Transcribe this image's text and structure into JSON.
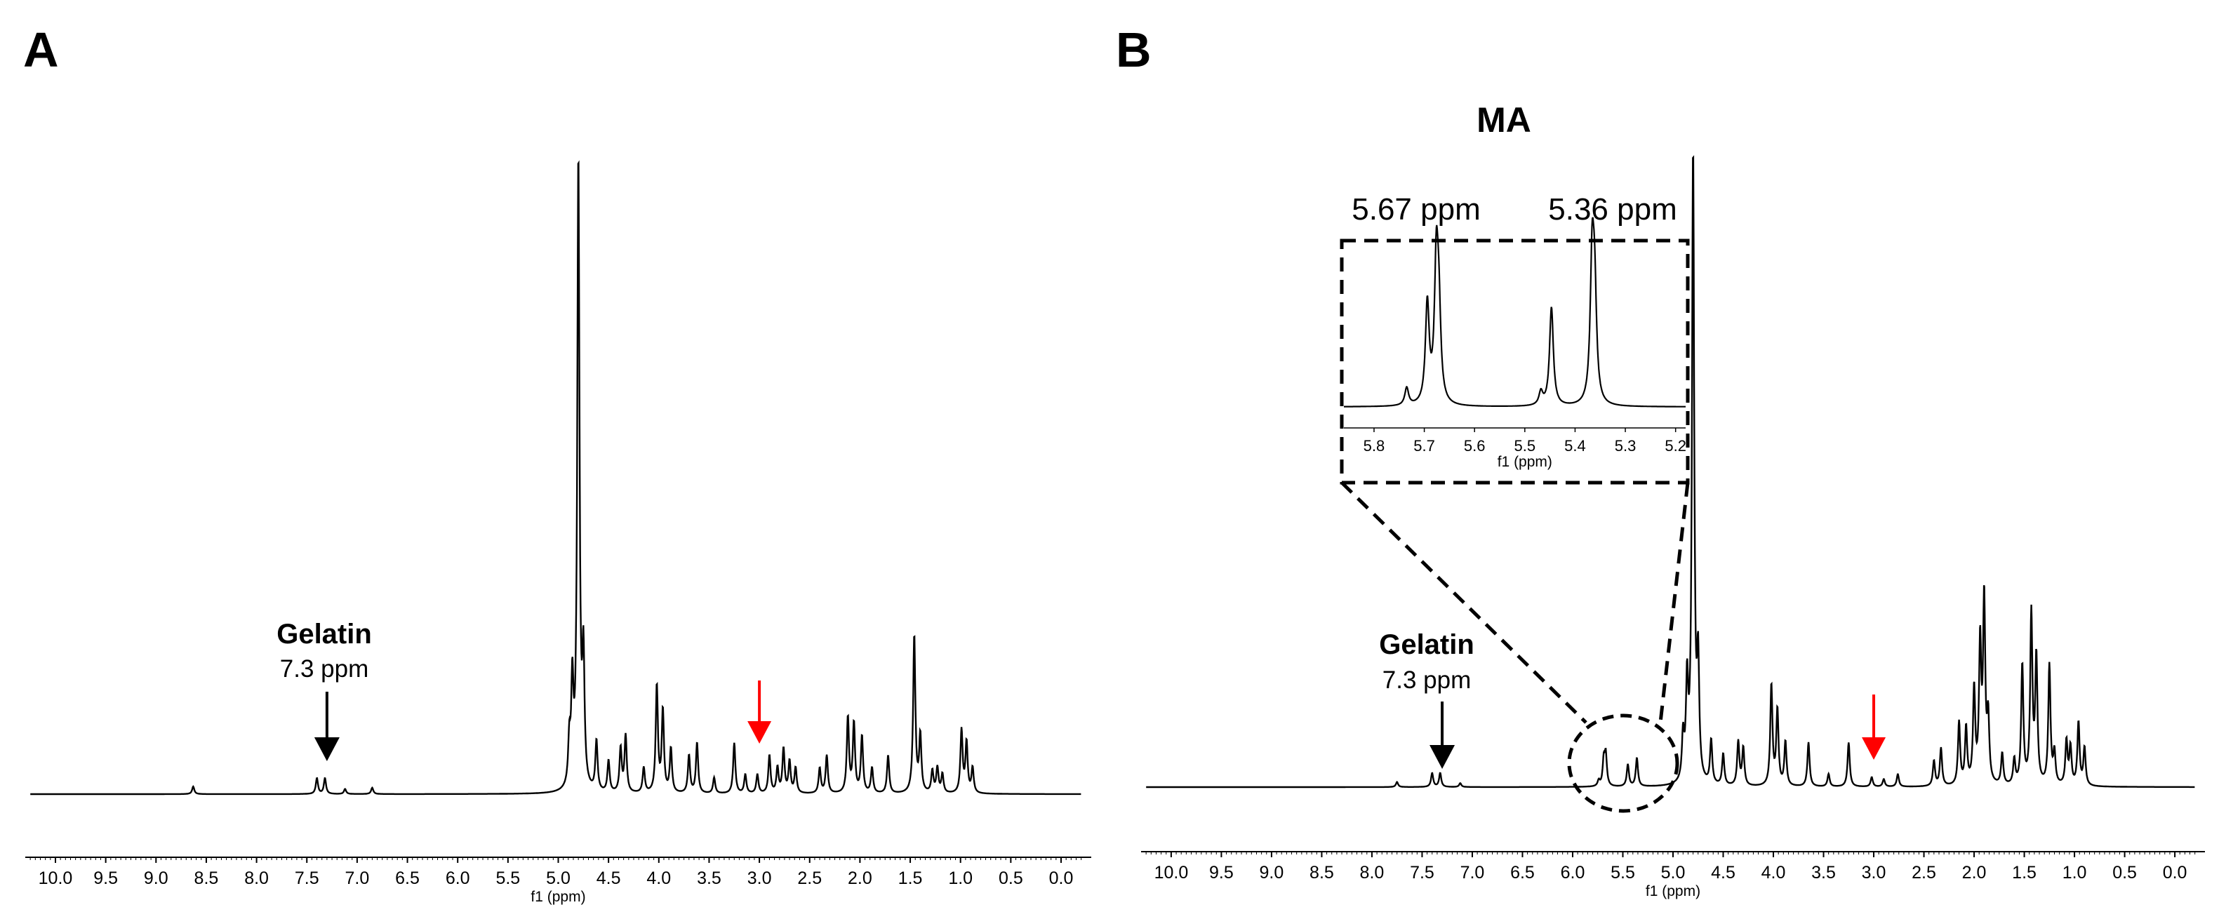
{
  "colors": {
    "spectrum": "#000000",
    "arrow_black": "#000000",
    "arrow_red": "#ff0000",
    "axis": "#000000"
  },
  "chart_data": [
    {
      "type": "line",
      "panel": "A",
      "xlabel": "f1 (ppm)",
      "xlim": [
        10.3,
        -0.3
      ],
      "ticks": [
        "10.0",
        "9.5",
        "9.0",
        "8.5",
        "8.0",
        "7.5",
        "7.0",
        "6.5",
        "6.0",
        "5.5",
        "5.0",
        "4.5",
        "4.0",
        "3.5",
        "3.0",
        "2.5",
        "2.0",
        "1.5",
        "1.0",
        "0.5",
        "0.0"
      ],
      "annotations": {
        "label": "Gelatin",
        "value": "7.3 ppm",
        "black_arrow_ppm": 7.3,
        "red_arrow_ppm": 3.0
      },
      "peaks": [
        {
          "ppm": 8.63,
          "h": 0.012
        },
        {
          "ppm": 7.4,
          "h": 0.025
        },
        {
          "ppm": 7.32,
          "h": 0.025
        },
        {
          "ppm": 7.12,
          "h": 0.008
        },
        {
          "ppm": 6.85,
          "h": 0.01
        },
        {
          "ppm": 4.89,
          "h": 0.07
        },
        {
          "ppm": 4.86,
          "h": 0.16
        },
        {
          "ppm": 4.8,
          "h": 1.0
        },
        {
          "ppm": 4.75,
          "h": 0.2
        },
        {
          "ppm": 4.62,
          "h": 0.08
        },
        {
          "ppm": 4.5,
          "h": 0.05
        },
        {
          "ppm": 4.38,
          "h": 0.07
        },
        {
          "ppm": 4.33,
          "h": 0.09
        },
        {
          "ppm": 4.15,
          "h": 0.04
        },
        {
          "ppm": 4.02,
          "h": 0.17
        },
        {
          "ppm": 3.96,
          "h": 0.13
        },
        {
          "ppm": 3.88,
          "h": 0.07
        },
        {
          "ppm": 3.7,
          "h": 0.06
        },
        {
          "ppm": 3.62,
          "h": 0.08
        },
        {
          "ppm": 3.45,
          "h": 0.025
        },
        {
          "ppm": 3.25,
          "h": 0.08
        },
        {
          "ppm": 3.14,
          "h": 0.03
        },
        {
          "ppm": 3.02,
          "h": 0.03
        },
        {
          "ppm": 2.9,
          "h": 0.06
        },
        {
          "ppm": 2.82,
          "h": 0.04
        },
        {
          "ppm": 2.76,
          "h": 0.07
        },
        {
          "ppm": 2.7,
          "h": 0.05
        },
        {
          "ppm": 2.64,
          "h": 0.04
        },
        {
          "ppm": 2.4,
          "h": 0.04
        },
        {
          "ppm": 2.33,
          "h": 0.06
        },
        {
          "ppm": 2.12,
          "h": 0.12
        },
        {
          "ppm": 2.06,
          "h": 0.11
        },
        {
          "ppm": 1.98,
          "h": 0.09
        },
        {
          "ppm": 1.88,
          "h": 0.04
        },
        {
          "ppm": 1.72,
          "h": 0.06
        },
        {
          "ppm": 1.46,
          "h": 0.25
        },
        {
          "ppm": 1.4,
          "h": 0.09
        },
        {
          "ppm": 1.28,
          "h": 0.035
        },
        {
          "ppm": 1.23,
          "h": 0.04
        },
        {
          "ppm": 1.18,
          "h": 0.03
        },
        {
          "ppm": 0.99,
          "h": 0.1
        },
        {
          "ppm": 0.94,
          "h": 0.08
        },
        {
          "ppm": 0.88,
          "h": 0.04
        }
      ]
    },
    {
      "type": "line",
      "panel": "B",
      "title": "MA",
      "xlabel": "f1 (ppm)",
      "xlim": [
        10.3,
        -0.3
      ],
      "ticks": [
        "10.0",
        "9.5",
        "9.0",
        "8.5",
        "8.0",
        "7.5",
        "7.0",
        "6.5",
        "6.0",
        "5.5",
        "5.0",
        "4.5",
        "4.0",
        "3.5",
        "3.0",
        "2.5",
        "2.0",
        "1.5",
        "1.0",
        "0.5",
        "0.0"
      ],
      "annotations": {
        "label": "Gelatin",
        "value": "7.3 ppm",
        "black_arrow_ppm": 7.3,
        "red_arrow_ppm": 3.0,
        "zoom_center_ppm": 5.5
      },
      "peaks": [
        {
          "ppm": 7.75,
          "h": 0.008
        },
        {
          "ppm": 7.4,
          "h": 0.022
        },
        {
          "ppm": 7.32,
          "h": 0.022
        },
        {
          "ppm": 7.12,
          "h": 0.006
        },
        {
          "ppm": 5.74,
          "h": 0.009
        },
        {
          "ppm": 5.69,
          "h": 0.04
        },
        {
          "ppm": 5.67,
          "h": 0.048
        },
        {
          "ppm": 5.45,
          "h": 0.035
        },
        {
          "ppm": 5.36,
          "h": 0.045
        },
        {
          "ppm": 4.9,
          "h": 0.07
        },
        {
          "ppm": 4.86,
          "h": 0.15
        },
        {
          "ppm": 4.8,
          "h": 1.0
        },
        {
          "ppm": 4.75,
          "h": 0.18
        },
        {
          "ppm": 4.62,
          "h": 0.07
        },
        {
          "ppm": 4.5,
          "h": 0.05
        },
        {
          "ppm": 4.35,
          "h": 0.07
        },
        {
          "ppm": 4.3,
          "h": 0.06
        },
        {
          "ppm": 4.02,
          "h": 0.16
        },
        {
          "ppm": 3.96,
          "h": 0.12
        },
        {
          "ppm": 3.88,
          "h": 0.07
        },
        {
          "ppm": 3.65,
          "h": 0.07
        },
        {
          "ppm": 3.45,
          "h": 0.02
        },
        {
          "ppm": 3.25,
          "h": 0.07
        },
        {
          "ppm": 3.02,
          "h": 0.015
        },
        {
          "ppm": 2.9,
          "h": 0.012
        },
        {
          "ppm": 2.76,
          "h": 0.02
        },
        {
          "ppm": 2.4,
          "h": 0.04
        },
        {
          "ppm": 2.33,
          "h": 0.06
        },
        {
          "ppm": 2.15,
          "h": 0.1
        },
        {
          "ppm": 2.08,
          "h": 0.09
        },
        {
          "ppm": 2.0,
          "h": 0.15
        },
        {
          "ppm": 1.94,
          "h": 0.22
        },
        {
          "ppm": 1.9,
          "h": 0.29
        },
        {
          "ppm": 1.86,
          "h": 0.1
        },
        {
          "ppm": 1.72,
          "h": 0.05
        },
        {
          "ppm": 1.6,
          "h": 0.04
        },
        {
          "ppm": 1.52,
          "h": 0.19
        },
        {
          "ppm": 1.43,
          "h": 0.27
        },
        {
          "ppm": 1.38,
          "h": 0.2
        },
        {
          "ppm": 1.25,
          "h": 0.19
        },
        {
          "ppm": 1.2,
          "h": 0.05
        },
        {
          "ppm": 1.08,
          "h": 0.07
        },
        {
          "ppm": 1.04,
          "h": 0.06
        },
        {
          "ppm": 0.96,
          "h": 0.1
        },
        {
          "ppm": 0.9,
          "h": 0.06
        }
      ],
      "inset": {
        "xlabel": "f1 (ppm)",
        "xlim": [
          5.86,
          5.18
        ],
        "ticks": [
          "5.8",
          "5.7",
          "5.6",
          "5.5",
          "5.4",
          "5.3",
          "5.2"
        ],
        "labels": [
          "5.67 ppm",
          "5.36 ppm"
        ],
        "peaks": [
          {
            "ppm": 5.735,
            "h": 0.12
          },
          {
            "ppm": 5.694,
            "h": 0.68
          },
          {
            "ppm": 5.676,
            "h": 0.93
          },
          {
            "ppm": 5.671,
            "h": 0.55
          },
          {
            "ppm": 5.468,
            "h": 0.09
          },
          {
            "ppm": 5.447,
            "h": 0.67
          },
          {
            "ppm": 5.366,
            "h": 0.95
          },
          {
            "ppm": 5.361,
            "h": 0.68
          }
        ]
      }
    }
  ]
}
